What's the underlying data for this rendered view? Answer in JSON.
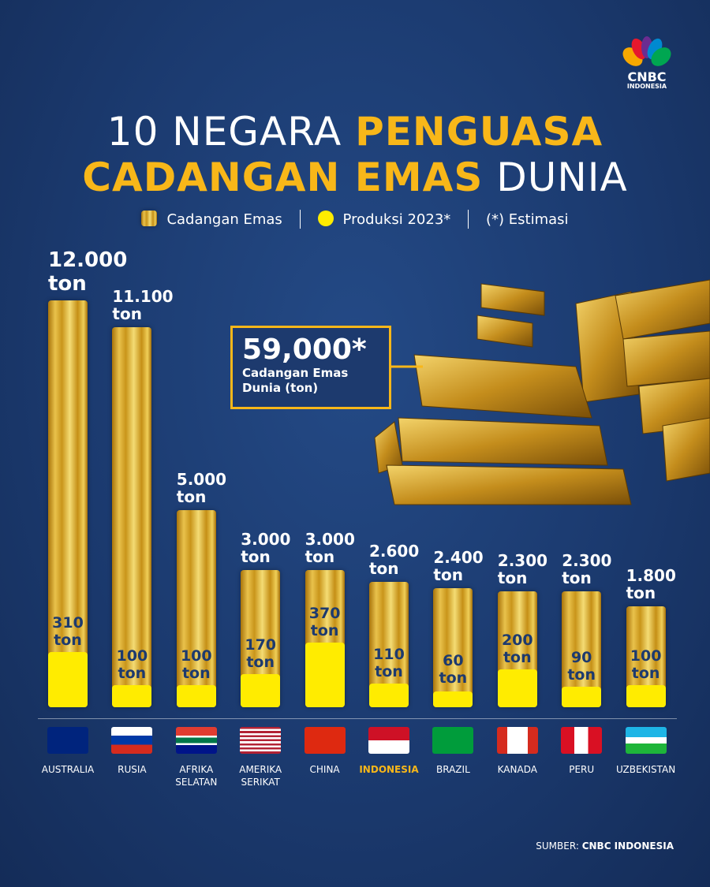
{
  "logo": {
    "text": "CNBC",
    "sub": "INDONESIA"
  },
  "chart_data": {
    "type": "bar",
    "title": [
      "10 NEGARA ",
      "PENGUASA",
      "CADANGAN EMAS",
      " DUNIA"
    ],
    "categories": [
      "AUSTRALIA",
      "RUSIA",
      "AFRIKA SELATAN",
      "AMERIKA SERIKAT",
      "CHINA",
      "INDONESIA",
      "BRAZIL",
      "KANADA",
      "PERU",
      "UZBEKISTAN"
    ],
    "highlight": "INDONESIA",
    "series": [
      {
        "name": "Cadangan Emas",
        "color": "#e0b53a",
        "values": [
          12000,
          11100,
          5000,
          3000,
          3000,
          2600,
          2400,
          2300,
          2300,
          1800
        ],
        "value_labels": [
          "12.000 ton",
          "11.100 ton",
          "5.000 ton",
          "3.000 ton",
          "3.000 ton",
          "2.600 ton",
          "2.400 ton",
          "2.300 ton",
          "2.300 ton",
          "1.800 ton"
        ]
      },
      {
        "name": "Produksi 2023*",
        "color": "#ffec00",
        "values": [
          310,
          100,
          100,
          170,
          370,
          110,
          60,
          200,
          90,
          100
        ],
        "value_labels": [
          "310 ton",
          "100 ton",
          "100 ton",
          "170 ton",
          "370 ton",
          "110 ton",
          "60 ton",
          "200 ton",
          "90 ton",
          "100 ton"
        ]
      }
    ],
    "note": "(*) Estimasi",
    "annotation": {
      "value": 59000,
      "label": "59,000*",
      "text": "Cadangan Emas Dunia (ton)"
    },
    "source": [
      "SUMBER:",
      "CNBC INDONESIA"
    ]
  }
}
